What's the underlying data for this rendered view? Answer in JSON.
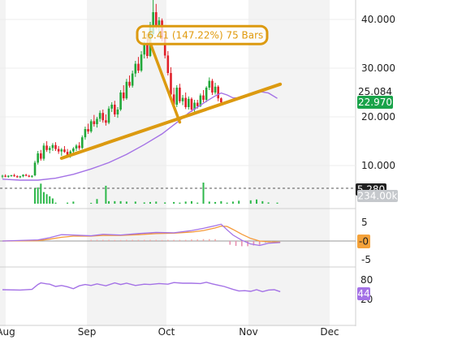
{
  "chart_data": [
    {
      "type": "candlestick",
      "panel": "price",
      "ylim": [
        5,
        44
      ],
      "y_ticks": [
        "40.000",
        "30.000",
        "20.000",
        "10.000"
      ],
      "x_ticks": [
        "Aug",
        "Sep",
        "Oct",
        "Nov",
        "Dec"
      ],
      "candles": [
        [
          7.8,
          8.1,
          7.4,
          7.9
        ],
        [
          7.9,
          8.2,
          7.6,
          7.7
        ],
        [
          7.7,
          8.0,
          7.5,
          7.9
        ],
        [
          7.9,
          8.1,
          7.7,
          8.0
        ],
        [
          8.0,
          8.3,
          7.7,
          7.8
        ],
        [
          7.8,
          8.0,
          7.5,
          7.6
        ],
        [
          7.6,
          7.9,
          7.4,
          7.8
        ],
        [
          7.8,
          8.2,
          7.6,
          8.1
        ],
        [
          8.1,
          8.3,
          7.8,
          7.9
        ],
        [
          7.9,
          8.1,
          7.6,
          7.7
        ],
        [
          7.7,
          8.0,
          7.5,
          7.9
        ],
        [
          8.0,
          11.0,
          7.8,
          10.6
        ],
        [
          10.6,
          13.0,
          10.2,
          12.5
        ],
        [
          12.5,
          13.2,
          11.0,
          11.4
        ],
        [
          11.4,
          14.6,
          11.0,
          14.1
        ],
        [
          14.1,
          15.0,
          12.8,
          13.2
        ],
        [
          13.2,
          14.0,
          12.5,
          13.6
        ],
        [
          13.6,
          14.6,
          13.0,
          14.2
        ],
        [
          14.2,
          14.8,
          13.0,
          13.4
        ],
        [
          13.4,
          14.0,
          12.4,
          12.9
        ],
        [
          12.9,
          13.6,
          12.0,
          13.3
        ],
        [
          13.3,
          14.0,
          12.6,
          12.8
        ],
        [
          12.8,
          13.4,
          11.8,
          12.2
        ],
        [
          12.2,
          13.2,
          11.6,
          12.9
        ],
        [
          12.9,
          13.8,
          12.4,
          13.5
        ],
        [
          13.5,
          14.4,
          13.0,
          14.1
        ],
        [
          14.1,
          14.8,
          13.2,
          13.6
        ],
        [
          13.6,
          16.2,
          13.4,
          15.8
        ],
        [
          15.8,
          18.0,
          15.3,
          17.5
        ],
        [
          17.5,
          18.6,
          16.5,
          17.0
        ],
        [
          17.0,
          19.5,
          16.7,
          19.1
        ],
        [
          19.1,
          20.4,
          18.0,
          18.5
        ],
        [
          18.5,
          20.0,
          17.8,
          19.6
        ],
        [
          19.6,
          21.3,
          19.0,
          20.8
        ],
        [
          20.8,
          21.5,
          18.8,
          19.3
        ],
        [
          19.3,
          20.5,
          18.2,
          18.8
        ],
        [
          18.8,
          22.2,
          18.5,
          21.7
        ],
        [
          21.7,
          23.0,
          21.0,
          22.5
        ],
        [
          22.5,
          23.3,
          20.0,
          20.5
        ],
        [
          20.5,
          22.0,
          19.8,
          21.5
        ],
        [
          21.5,
          25.5,
          21.2,
          25.0
        ],
        [
          25.0,
          26.5,
          23.3,
          23.8
        ],
        [
          23.8,
          27.8,
          23.5,
          27.2
        ],
        [
          27.2,
          28.5,
          26.0,
          26.4
        ],
        [
          26.4,
          29.5,
          26.0,
          28.9
        ],
        [
          28.9,
          31.5,
          28.2,
          30.9
        ],
        [
          30.9,
          32.3,
          29.0,
          29.5
        ],
        [
          29.5,
          33.5,
          29.2,
          32.8
        ],
        [
          32.8,
          35.5,
          32.0,
          34.9
        ],
        [
          34.9,
          36.0,
          32.0,
          32.5
        ],
        [
          32.5,
          39.5,
          32.3,
          38.9
        ],
        [
          37.0,
          44.0,
          36.5,
          41.5
        ],
        [
          41.5,
          43.2,
          38.0,
          38.5
        ],
        [
          38.5,
          40.5,
          36.5,
          39.8
        ],
        [
          39.8,
          40.2,
          35.5,
          36.0
        ],
        [
          36.0,
          37.0,
          32.0,
          32.6
        ],
        [
          32.6,
          33.5,
          28.5,
          29.0
        ],
        [
          29.0,
          30.2,
          24.2,
          24.6
        ],
        [
          24.6,
          26.0,
          22.0,
          22.5
        ],
        [
          22.5,
          26.5,
          22.0,
          26.0
        ],
        [
          26.0,
          26.8,
          22.8,
          23.2
        ],
        [
          23.2,
          24.5,
          22.4,
          23.9
        ],
        [
          23.9,
          25.0,
          21.6,
          22.0
        ],
        [
          22.0,
          24.2,
          21.5,
          23.7
        ],
        [
          23.7,
          24.0,
          21.0,
          21.5
        ],
        [
          21.5,
          23.5,
          21.0,
          22.9
        ],
        [
          22.9,
          23.5,
          21.7,
          22.2
        ],
        [
          22.2,
          24.8,
          22.0,
          24.4
        ],
        [
          24.4,
          25.5,
          23.0,
          23.5
        ],
        [
          23.5,
          26.3,
          23.0,
          26.0
        ],
        [
          26.0,
          28.1,
          25.5,
          27.4
        ],
        [
          27.4,
          27.8,
          24.5,
          25.0
        ],
        [
          25.0,
          27.0,
          24.6,
          26.2
        ],
        [
          26.2,
          26.5,
          23.2,
          23.8
        ],
        [
          23.8,
          24.0,
          22.8,
          22.97
        ]
      ],
      "moving_average": [
        [
          0,
          7.2
        ],
        [
          6,
          7.0
        ],
        [
          12,
          7.0
        ],
        [
          18,
          7.4
        ],
        [
          24,
          8.2
        ],
        [
          30,
          9.3
        ],
        [
          36,
          10.6
        ],
        [
          42,
          12.3
        ],
        [
          48,
          14.3
        ],
        [
          54,
          16.5
        ],
        [
          60,
          19.3
        ],
        [
          63,
          20.8
        ],
        [
          66,
          22.0
        ],
        [
          69,
          23.2
        ],
        [
          72,
          24.3
        ],
        [
          74,
          24.9
        ],
        [
          76,
          24.5
        ],
        [
          78,
          23.9
        ],
        [
          81,
          23.9
        ],
        [
          84,
          24.5
        ],
        [
          87,
          25.2
        ],
        [
          90,
          24.9
        ],
        [
          93,
          23.8
        ]
      ],
      "ma_label": "25.084",
      "last_price_label": "22.970",
      "trend_line": [
        [
          20,
          11.5
        ],
        [
          94,
          26.7
        ]
      ],
      "measure": {
        "label": "16.41 (147.22%) 75 Bars",
        "from": [
          60,
          18.9
        ],
        "box_value": 36.8,
        "to": [
          49,
          36.8
        ]
      },
      "volume_label": "234.00k",
      "volume_level_label": "5.280",
      "volume_bars": [
        [
          0,
          0.0
        ],
        [
          4,
          0.0
        ],
        [
          8,
          0.0
        ],
        [
          10,
          0.0
        ],
        [
          11,
          0.72
        ],
        [
          12,
          0.77
        ],
        [
          13,
          0.95
        ],
        [
          14,
          0.55
        ],
        [
          15,
          0.45
        ],
        [
          16,
          0.35
        ],
        [
          17,
          0.25
        ],
        [
          18,
          0.05
        ],
        [
          22,
          0.05
        ],
        [
          24,
          0.1
        ],
        [
          30,
          0.04
        ],
        [
          32,
          0.22
        ],
        [
          35,
          0.85
        ],
        [
          36,
          0.12
        ],
        [
          38,
          0.12
        ],
        [
          40,
          0.12
        ],
        [
          42,
          0.1
        ],
        [
          45,
          0.1
        ],
        [
          48,
          0.06
        ],
        [
          50,
          0.08
        ],
        [
          52,
          0.1
        ],
        [
          55,
          0.06
        ],
        [
          58,
          0.08
        ],
        [
          60,
          0.05
        ],
        [
          62,
          0.1
        ],
        [
          64,
          0.12
        ],
        [
          66,
          0.05
        ],
        [
          68,
          1.0
        ],
        [
          70,
          0.1
        ],
        [
          72,
          0.08
        ],
        [
          74,
          0.12
        ],
        [
          76,
          0.05
        ],
        [
          78,
          0.1
        ],
        [
          80,
          0.14
        ],
        [
          84,
          0.16
        ],
        [
          86,
          0.2
        ],
        [
          88,
          0.12
        ],
        [
          90,
          0.06
        ],
        [
          93,
          0.05
        ]
      ]
    },
    {
      "type": "macd",
      "panel": "macd",
      "ylim": [
        -6,
        7
      ],
      "y_ticks": [
        "5",
        "-5"
      ],
      "value_label": "-0",
      "macd_line": [
        [
          0,
          0.0
        ],
        [
          12,
          0.3
        ],
        [
          16,
          0.9
        ],
        [
          20,
          1.7
        ],
        [
          24,
          1.6
        ],
        [
          30,
          1.4
        ],
        [
          34,
          1.8
        ],
        [
          40,
          1.6
        ],
        [
          46,
          2.0
        ],
        [
          52,
          2.3
        ],
        [
          58,
          2.2
        ],
        [
          64,
          2.8
        ],
        [
          68,
          3.4
        ],
        [
          72,
          4.1
        ],
        [
          74,
          4.5
        ],
        [
          76,
          3.0
        ],
        [
          78,
          1.6
        ],
        [
          81,
          0.2
        ],
        [
          84,
          -0.8
        ],
        [
          87,
          -1.2
        ],
        [
          90,
          -0.6
        ],
        [
          94,
          -0.4
        ]
      ],
      "signal_line": [
        [
          0,
          0.0
        ],
        [
          12,
          0.1
        ],
        [
          16,
          0.5
        ],
        [
          20,
          1.0
        ],
        [
          24,
          1.3
        ],
        [
          30,
          1.3
        ],
        [
          34,
          1.5
        ],
        [
          40,
          1.5
        ],
        [
          46,
          1.7
        ],
        [
          52,
          2.0
        ],
        [
          58,
          2.1
        ],
        [
          64,
          2.4
        ],
        [
          68,
          2.8
        ],
        [
          72,
          3.5
        ],
        [
          74,
          4.0
        ],
        [
          76,
          3.9
        ],
        [
          78,
          3.1
        ],
        [
          81,
          1.8
        ],
        [
          84,
          0.7
        ],
        [
          87,
          0.0
        ],
        [
          90,
          -0.2
        ],
        [
          94,
          -0.3
        ]
      ],
      "histogram": [
        [
          30,
          0.3
        ],
        [
          32,
          0.3
        ],
        [
          34,
          0.3
        ],
        [
          36,
          0.3
        ],
        [
          38,
          0.25
        ],
        [
          40,
          0.25
        ],
        [
          42,
          0.3
        ],
        [
          44,
          0.3
        ],
        [
          46,
          0.3
        ],
        [
          48,
          0.3
        ],
        [
          50,
          0.3
        ],
        [
          52,
          0.3
        ],
        [
          54,
          0.25
        ],
        [
          56,
          0.3
        ],
        [
          58,
          0.3
        ],
        [
          60,
          0.3
        ],
        [
          62,
          0.3
        ],
        [
          64,
          0.4
        ],
        [
          66,
          0.4
        ],
        [
          68,
          0.5
        ],
        [
          70,
          0.5
        ],
        [
          72,
          0.5
        ],
        [
          77,
          -1.0
        ],
        [
          79,
          -1.3
        ],
        [
          81,
          -1.4
        ],
        [
          83,
          -1.4
        ],
        [
          85,
          -1.2
        ],
        [
          87,
          -1.0
        ],
        [
          89,
          -0.5
        ],
        [
          91,
          -0.3
        ]
      ]
    },
    {
      "type": "rsi",
      "panel": "rsi",
      "ylim": [
        10,
        95
      ],
      "y_ticks": [
        "80",
        "20"
      ],
      "value_label": "44",
      "rsi_line": [
        [
          0,
          50
        ],
        [
          6,
          49
        ],
        [
          10,
          51
        ],
        [
          12,
          66
        ],
        [
          13,
          71
        ],
        [
          15,
          68
        ],
        [
          16,
          67
        ],
        [
          18,
          60
        ],
        [
          20,
          63
        ],
        [
          22,
          59
        ],
        [
          24,
          53
        ],
        [
          26,
          62
        ],
        [
          28,
          66
        ],
        [
          30,
          63
        ],
        [
          32,
          68
        ],
        [
          35,
          62
        ],
        [
          38,
          71
        ],
        [
          40,
          66
        ],
        [
          42,
          70
        ],
        [
          45,
          63
        ],
        [
          48,
          67
        ],
        [
          50,
          66
        ],
        [
          53,
          69
        ],
        [
          56,
          67
        ],
        [
          58,
          72
        ],
        [
          61,
          70
        ],
        [
          64,
          70
        ],
        [
          67,
          69
        ],
        [
          69,
          73
        ],
        [
          71,
          68
        ],
        [
          73,
          64
        ],
        [
          75,
          60
        ],
        [
          78,
          51
        ],
        [
          80,
          46
        ],
        [
          82,
          47
        ],
        [
          84,
          45
        ],
        [
          86,
          50
        ],
        [
          88,
          44
        ],
        [
          90,
          49
        ],
        [
          92,
          50
        ],
        [
          94,
          44
        ]
      ]
    }
  ]
}
